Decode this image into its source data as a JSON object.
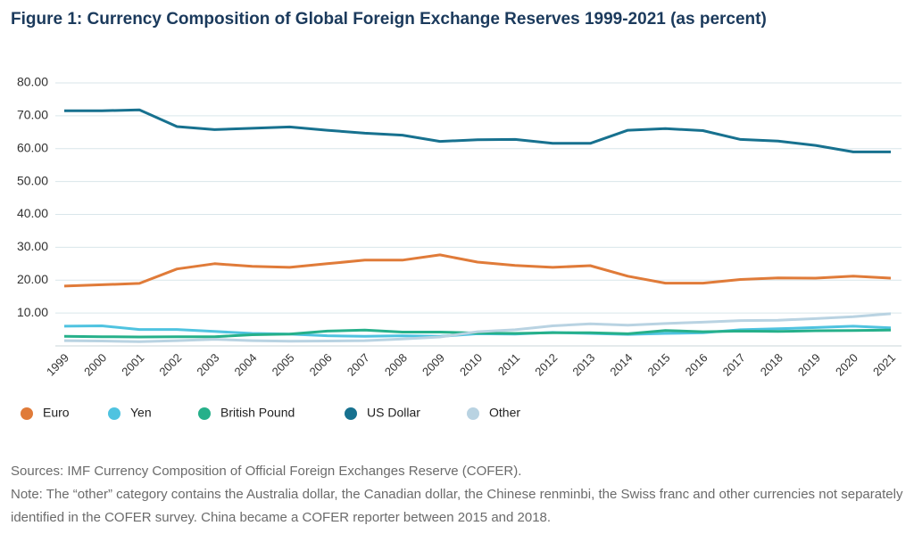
{
  "chart_data": {
    "type": "line",
    "title": "Figure 1: Currency Composition of Global Foreign Exchange Reserves 1999-2021 (as percent)",
    "categories": [
      "1999",
      "2000",
      "2001",
      "2002",
      "2003",
      "2004",
      "2005",
      "2006",
      "2007",
      "2008",
      "2009",
      "2010",
      "2011",
      "2012",
      "2013",
      "2014",
      "2015",
      "2016",
      "2017",
      "2018",
      "2019",
      "2020",
      "2021"
    ],
    "series": [
      {
        "name": "Euro",
        "color": "#e07b39",
        "values": [
          18.2,
          18.6,
          19.0,
          23.4,
          25.0,
          24.2,
          23.9,
          25.0,
          26.1,
          26.1,
          27.7,
          25.5,
          24.5,
          23.9,
          24.4,
          21.2,
          19.1,
          19.1,
          20.2,
          20.7,
          20.6,
          21.2,
          20.6
        ]
      },
      {
        "name": "Yen",
        "color": "#4fc3e0",
        "values": [
          6.0,
          6.1,
          5.0,
          5.0,
          4.4,
          3.8,
          3.6,
          3.1,
          2.9,
          3.1,
          2.9,
          3.7,
          3.6,
          4.1,
          3.8,
          3.5,
          3.8,
          4.0,
          4.9,
          5.2,
          5.6,
          6.0,
          5.5
        ]
      },
      {
        "name": "British Pound",
        "color": "#26b08a",
        "values": [
          2.9,
          2.8,
          2.7,
          2.8,
          2.8,
          3.4,
          3.6,
          4.5,
          4.8,
          4.2,
          4.2,
          3.9,
          3.8,
          4.0,
          4.0,
          3.7,
          4.7,
          4.3,
          4.5,
          4.4,
          4.6,
          4.7,
          4.8
        ]
      },
      {
        "name": "US Dollar",
        "color": "#17718f",
        "values": [
          71.5,
          71.5,
          71.8,
          66.7,
          65.8,
          66.2,
          66.6,
          65.6,
          64.7,
          64.1,
          62.2,
          62.7,
          62.8,
          61.6,
          61.6,
          65.6,
          66.1,
          65.5,
          62.8,
          62.3,
          61.0,
          59.0,
          59.0
        ]
      },
      {
        "name": "Other",
        "color": "#b9d3e2",
        "values": [
          1.6,
          1.5,
          1.3,
          1.6,
          2.0,
          1.6,
          1.4,
          1.5,
          1.6,
          2.1,
          2.7,
          4.3,
          4.9,
          6.1,
          6.7,
          6.3,
          6.8,
          7.2,
          7.7,
          7.8,
          8.3,
          8.9,
          9.8
        ]
      }
    ],
    "ylim": [
      0,
      80
    ],
    "yticks": [
      {
        "value": 10,
        "label": "10.00"
      },
      {
        "value": 20,
        "label": "20.00"
      },
      {
        "value": 30,
        "label": "30.00"
      },
      {
        "value": 40,
        "label": "40.00"
      },
      {
        "value": 50,
        "label": "50.00"
      },
      {
        "value": 60,
        "label": "60.00"
      },
      {
        "value": 70,
        "label": "70.00"
      },
      {
        "value": 80,
        "label": "80.00"
      }
    ],
    "grid": true,
    "legend": "bottom",
    "sources": "Sources: IMF Currency Composition of Official Foreign Exchanges Reserve (COFER).",
    "note": "Note: The “other” category contains the Australia dollar, the Canadian dollar, the Chinese renminbi, the Swiss franc and other currencies not separately identified in the COFER survey. China became a COFER reporter between 2015 and 2018."
  }
}
